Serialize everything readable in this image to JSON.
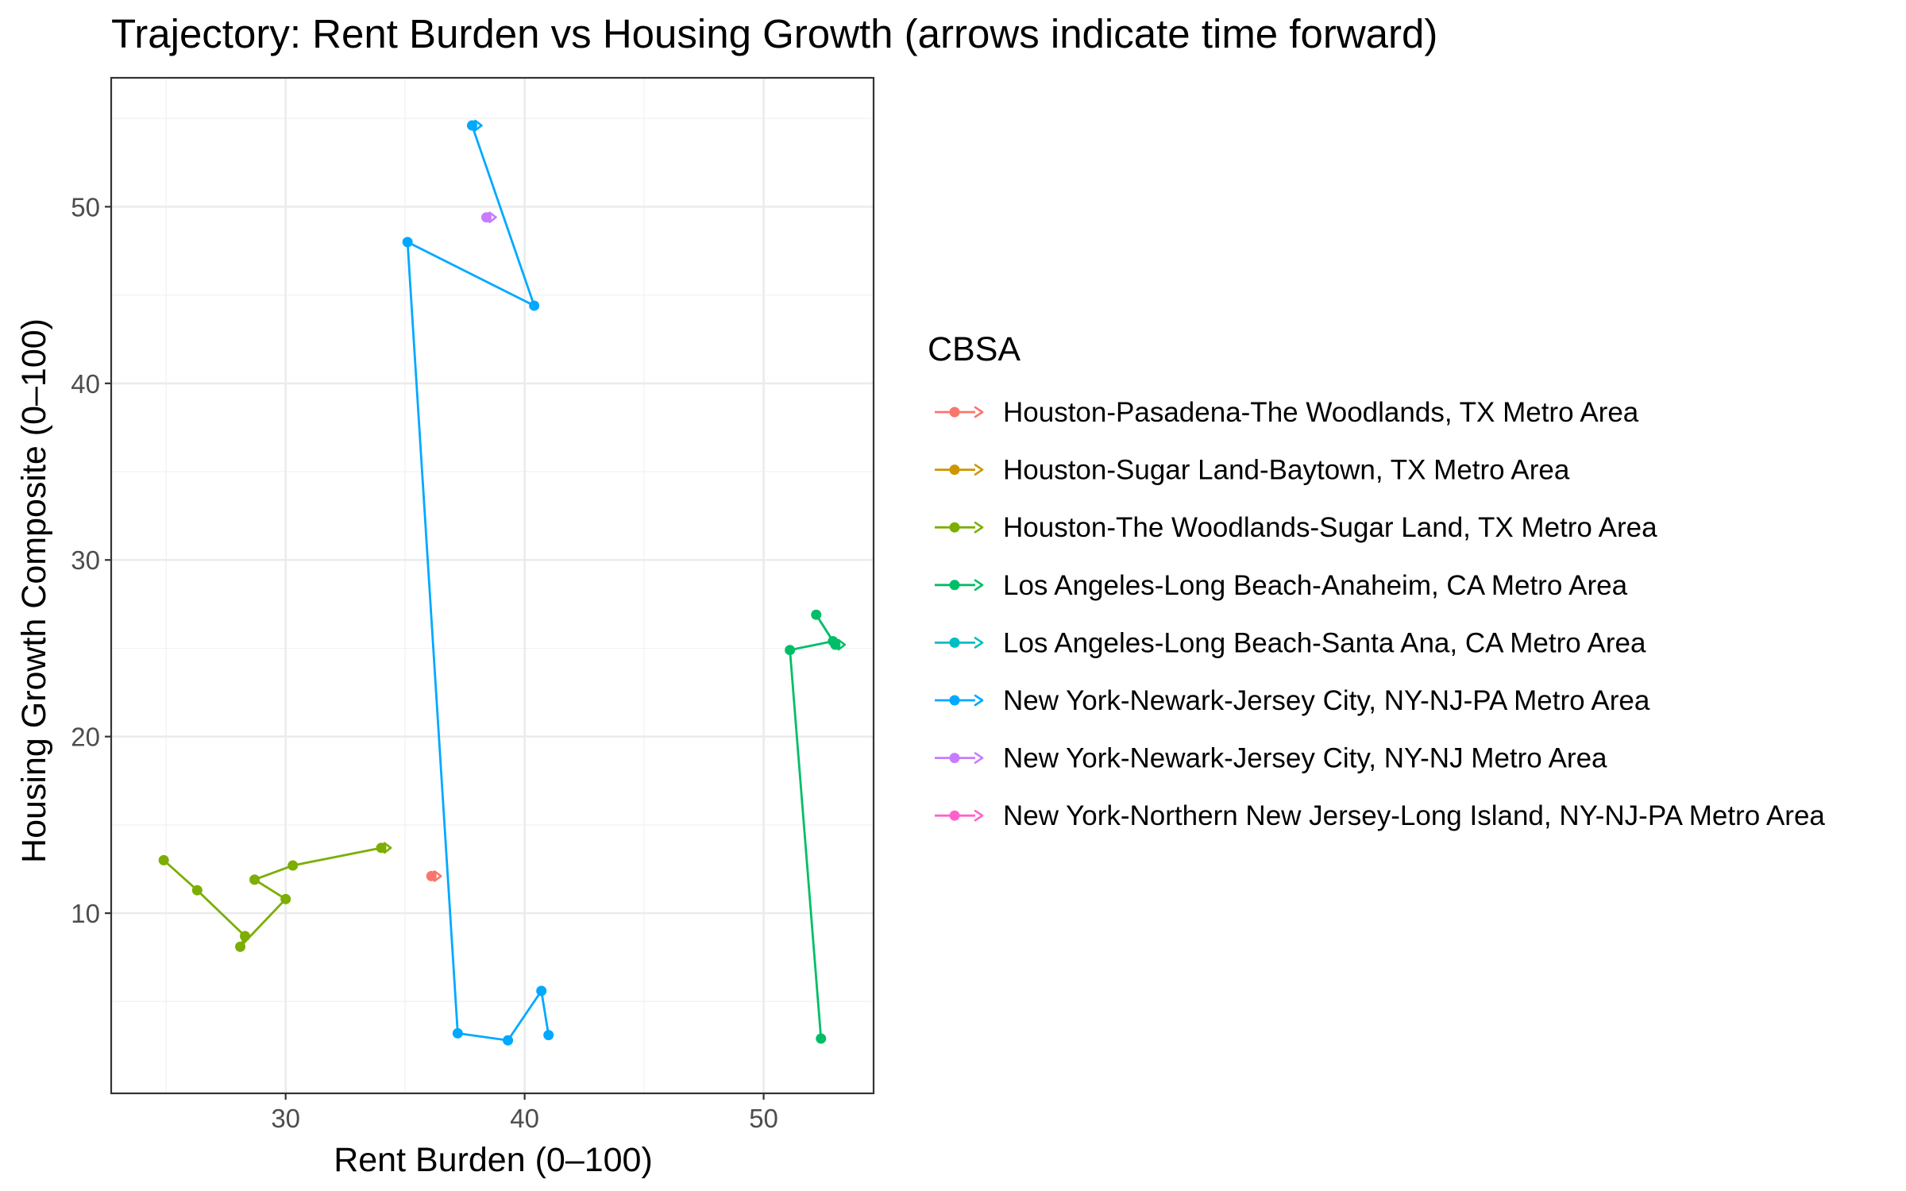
{
  "chart_data": {
    "type": "line",
    "title": "Trajectory: Rent Burden vs Housing Growth (arrows indicate time forward)",
    "xlabel": "Rent Burden (0–100)",
    "ylabel": "Housing Growth Composite (0–100)",
    "xlim": [
      22.7,
      54.6
    ],
    "ylim": [
      -0.2,
      57.3
    ],
    "x_ticks": [
      30,
      40,
      50
    ],
    "y_ticks": [
      10,
      20,
      30,
      40,
      50
    ],
    "x_tick_labels": [
      "30",
      "40",
      "50"
    ],
    "y_tick_labels": [
      "10",
      "20",
      "30",
      "40",
      "50"
    ],
    "grid": true,
    "legend_title": "CBSA",
    "legend_position": "right",
    "series": [
      {
        "name": "Houston-Pasadena-The Woodlands, TX Metro Area",
        "color": "#F8766D",
        "points": [
          [
            36.1,
            12.1
          ]
        ]
      },
      {
        "name": "Houston-Sugar Land-Baytown, TX Metro Area",
        "color": "#CD9600",
        "points": []
      },
      {
        "name": "Houston-The Woodlands-Sugar Land, TX Metro Area",
        "color": "#7CAE00",
        "points": [
          [
            24.9,
            13.0
          ],
          [
            26.3,
            11.3
          ],
          [
            28.3,
            8.7
          ],
          [
            28.1,
            8.1
          ],
          [
            30.0,
            10.8
          ],
          [
            28.7,
            11.9
          ],
          [
            30.3,
            12.7
          ],
          [
            34.0,
            13.7
          ]
        ]
      },
      {
        "name": "Los Angeles-Long Beach-Anaheim, CA Metro Area",
        "color": "#00BE67",
        "points": [
          [
            52.4,
            2.9
          ],
          [
            51.1,
            24.9
          ],
          [
            52.9,
            25.4
          ],
          [
            52.2,
            26.9
          ],
          [
            53.0,
            25.2
          ]
        ]
      },
      {
        "name": "Los Angeles-Long Beach-Santa Ana, CA Metro Area",
        "color": "#00BFC4",
        "points": []
      },
      {
        "name": "New York-Newark-Jersey City, NY-NJ-PA Metro Area",
        "color": "#00A9FF",
        "points": [
          [
            41.0,
            3.1
          ],
          [
            40.7,
            5.6
          ],
          [
            39.3,
            2.8
          ],
          [
            37.2,
            3.2
          ],
          [
            35.1,
            48.0
          ],
          [
            40.4,
            44.4
          ],
          [
            37.8,
            54.6
          ]
        ]
      },
      {
        "name": "New York-Newark-Jersey City, NY-NJ Metro Area",
        "color": "#C77CFF",
        "points": [
          [
            38.4,
            49.4
          ]
        ]
      },
      {
        "name": "New York-Northern New Jersey-Long Island, NY-NJ-PA Metro Area",
        "color": "#FF61CC",
        "points": []
      }
    ]
  }
}
